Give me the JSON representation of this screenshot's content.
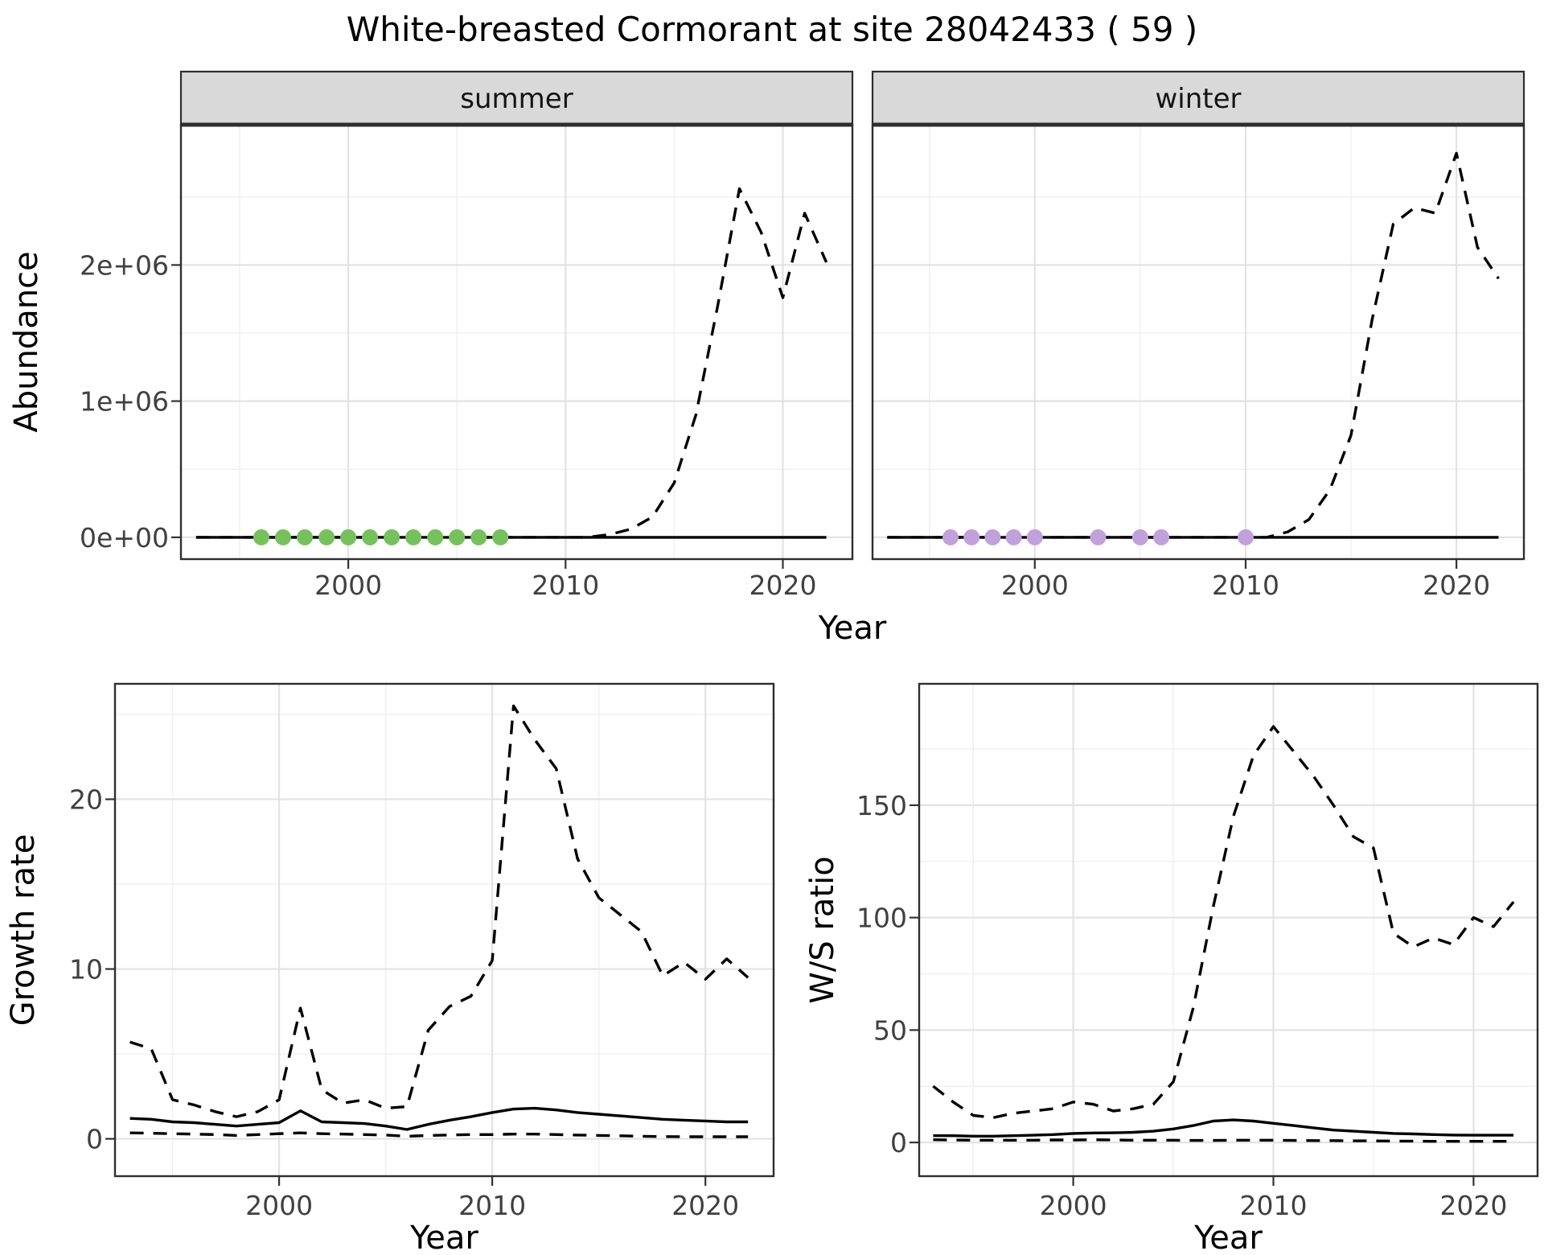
{
  "title": "White-breasted Cormorant at site 28042433 ( 59 )",
  "chart_data": {
    "type": "line",
    "theme": {
      "line": "#000000",
      "grid_major": "#e3e3e3",
      "grid_minor": "#f0f0f0",
      "border": "#2e2e2e",
      "axis_tick": "#333333",
      "tick_text": "#404040",
      "strip_bg": "#d9d9d9",
      "strip_text": "#141414",
      "summer_point_color": "#77c05e",
      "winter_point_color": "#c0a1db"
    },
    "abundance": {
      "xlabel": "Year",
      "ylabel": "Abundance",
      "xlim": [
        1992.3,
        2023.2
      ],
      "ylim": [
        -160000,
        3030000
      ],
      "xticks": [
        2000,
        2010,
        2020
      ],
      "yticks": [
        0,
        1000000,
        2000000
      ],
      "ytick_labels": [
        "0e+00",
        "1e+06",
        "2e+06"
      ],
      "years": [
        1993,
        1994,
        1995,
        1996,
        1997,
        1998,
        1999,
        2000,
        2001,
        2002,
        2003,
        2004,
        2005,
        2006,
        2007,
        2008,
        2009,
        2010,
        2011,
        2012,
        2013,
        2014,
        2015,
        2016,
        2017,
        2018,
        2019,
        2020,
        2021,
        2022
      ],
      "facets": [
        {
          "label": "summer",
          "dot_color": "#77c05e",
          "dot_years": [
            1996,
            1997,
            1998,
            1999,
            2000,
            2001,
            2002,
            2003,
            2004,
            2005,
            2006,
            2007
          ],
          "series": [
            {
              "name": "upper-ci",
              "style": "dashed",
              "values": [
                0,
                0,
                0,
                0,
                0,
                0,
                0,
                0,
                0,
                0,
                0,
                0,
                0,
                0,
                0,
                0,
                0,
                0,
                0,
                20000,
                60000,
                150000,
                400000,
                900000,
                1700000,
                2560000,
                2240000,
                1760000,
                2380000,
                2020000
              ]
            },
            {
              "name": "estimate",
              "style": "solid",
              "values": [
                0,
                0,
                0,
                0,
                0,
                0,
                0,
                0,
                0,
                0,
                0,
                0,
                0,
                0,
                0,
                0,
                0,
                0,
                0,
                0,
                0,
                0,
                0,
                0,
                0,
                0,
                0,
                0,
                0,
                0
              ]
            }
          ]
        },
        {
          "label": "winter",
          "dot_color": "#c0a1db",
          "dot_years": [
            1996,
            1997,
            1998,
            1999,
            2000,
            2003,
            2005,
            2006,
            2010
          ],
          "series": [
            {
              "name": "upper-ci",
              "style": "dashed",
              "values": [
                0,
                0,
                0,
                0,
                0,
                0,
                0,
                0,
                0,
                0,
                0,
                0,
                0,
                0,
                0,
                0,
                0,
                0,
                0,
                40000,
                130000,
                350000,
                750000,
                1600000,
                2300000,
                2420000,
                2380000,
                2820000,
                2130000,
                1900000
              ]
            },
            {
              "name": "estimate",
              "style": "solid",
              "values": [
                0,
                0,
                0,
                0,
                0,
                0,
                0,
                0,
                0,
                0,
                0,
                0,
                0,
                0,
                0,
                0,
                0,
                0,
                0,
                0,
                0,
                0,
                0,
                0,
                0,
                0,
                0,
                0,
                0,
                0
              ]
            }
          ]
        }
      ]
    },
    "growth_rate": {
      "xlabel": "Year",
      "ylabel": "Growth rate",
      "xlim": [
        1992.3,
        2023.2
      ],
      "ylim": [
        -2.2,
        26.8
      ],
      "xticks": [
        2000,
        2010,
        2020
      ],
      "yticks": [
        0,
        10,
        20
      ],
      "ytick_labels": [
        "0",
        "10",
        "20"
      ],
      "years": [
        1993,
        1994,
        1995,
        1996,
        1997,
        1998,
        1999,
        2000,
        2001,
        2002,
        2003,
        2004,
        2005,
        2006,
        2007,
        2008,
        2009,
        2010,
        2011,
        2012,
        2013,
        2014,
        2015,
        2016,
        2017,
        2018,
        2019,
        2020,
        2021,
        2022
      ],
      "series": [
        {
          "name": "upper-ci",
          "style": "dashed",
          "values": [
            5.7,
            5.3,
            2.3,
            2.0,
            1.6,
            1.3,
            1.6,
            2.3,
            7.7,
            2.9,
            2.1,
            2.3,
            1.8,
            1.9,
            6.4,
            7.8,
            8.4,
            10.5,
            25.5,
            23.5,
            21.8,
            16.5,
            14.2,
            13.2,
            12.2,
            9.6,
            10.4,
            9.4,
            10.6,
            9.5
          ]
        },
        {
          "name": "lower-ci",
          "style": "dashed",
          "values": [
            0.35,
            0.33,
            0.3,
            0.28,
            0.25,
            0.2,
            0.25,
            0.3,
            0.35,
            0.3,
            0.28,
            0.25,
            0.22,
            0.15,
            0.2,
            0.22,
            0.25,
            0.25,
            0.28,
            0.28,
            0.25,
            0.22,
            0.2,
            0.18,
            0.15,
            0.13,
            0.12,
            0.12,
            0.12,
            0.12
          ]
        },
        {
          "name": "estimate",
          "style": "solid",
          "values": [
            1.2,
            1.15,
            1.0,
            0.95,
            0.85,
            0.75,
            0.85,
            0.95,
            1.65,
            1.0,
            0.95,
            0.9,
            0.75,
            0.55,
            0.85,
            1.1,
            1.3,
            1.55,
            1.75,
            1.8,
            1.7,
            1.55,
            1.45,
            1.35,
            1.25,
            1.15,
            1.1,
            1.05,
            1.0,
            1.0
          ]
        }
      ]
    },
    "ws_ratio": {
      "xlabel": "Year",
      "ylabel": "W/S ratio",
      "xlim": [
        1992.3,
        2023.2
      ],
      "ylim": [
        -15,
        204
      ],
      "xticks": [
        2000,
        2010,
        2020
      ],
      "yticks": [
        0,
        50,
        100,
        150
      ],
      "ytick_labels": [
        "0",
        "50",
        "100",
        "150"
      ],
      "years": [
        1993,
        1994,
        1995,
        1996,
        1997,
        1998,
        1999,
        2000,
        2001,
        2002,
        2003,
        2004,
        2005,
        2006,
        2007,
        2008,
        2009,
        2010,
        2011,
        2012,
        2013,
        2014,
        2015,
        2016,
        2017,
        2018,
        2019,
        2020,
        2021,
        2022
      ],
      "series": [
        {
          "name": "upper-ci",
          "style": "dashed",
          "values": [
            25,
            18,
            12,
            11,
            13,
            14,
            15,
            18,
            17,
            14,
            15,
            17,
            27,
            60,
            105,
            145,
            172,
            185,
            174,
            163,
            150,
            136,
            131,
            93,
            87,
            91,
            88,
            100,
            96,
            107
          ]
        },
        {
          "name": "lower-ci",
          "style": "dashed",
          "values": [
            1.2,
            1.1,
            1.0,
            1.0,
            1.0,
            1.0,
            1.1,
            1.1,
            1.2,
            1.1,
            1.0,
            1.0,
            1.0,
            0.9,
            0.9,
            1.0,
            1.0,
            1.0,
            0.9,
            0.8,
            0.8,
            0.7,
            0.7,
            0.6,
            0.6,
            0.5,
            0.5,
            0.5,
            0.5,
            0.5
          ]
        },
        {
          "name": "estimate",
          "style": "solid",
          "values": [
            3,
            3,
            2.8,
            2.8,
            3,
            3.2,
            3.5,
            4,
            4.2,
            4.3,
            4.5,
            5,
            6,
            7.5,
            9.5,
            10,
            9.5,
            8.5,
            7.5,
            6.5,
            5.5,
            5,
            4.5,
            4,
            3.8,
            3.5,
            3.3,
            3.2,
            3.2,
            3.2
          ]
        }
      ]
    }
  }
}
